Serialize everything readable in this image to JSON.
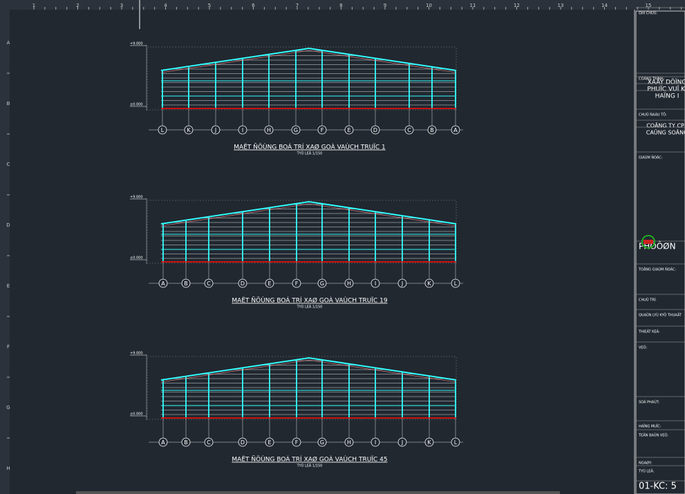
{
  "top_ruler": [
    "1",
    "2",
    "3",
    "4",
    "5",
    "6",
    "7",
    "8",
    "9",
    "10",
    "11",
    "12",
    "13",
    "14",
    "15"
  ],
  "left_ruler": [
    "A",
    "B",
    "C",
    "D",
    "E",
    "F",
    "G",
    "H"
  ],
  "drawings": [
    {
      "title": "MAËT ÑÖÙNG BOÁ TRÍ XAØ GOÀ VAÙCH TRUÏC 1",
      "scale": "TYÛ LEÄ 1/150",
      "level_top": "+9.000",
      "level_base": "±0.000",
      "axes": [
        "L",
        "K",
        "J",
        "I",
        "H",
        "G",
        "F",
        "E",
        "D",
        "C",
        "B",
        "A"
      ]
    },
    {
      "title": "MAËT ÑÖÙNG BOÁ TRÍ XAØ GOÀ VAÙCH TRUÏC 19",
      "scale": "TYÛ LEÄ 1/150",
      "level_top": "+9.000",
      "level_base": "±0.000",
      "axes": [
        "A",
        "B",
        "C",
        "D",
        "E",
        "F",
        "G",
        "H",
        "I",
        "J",
        "K",
        "L"
      ]
    },
    {
      "title": "MAËT ÑÖÙNG BOÁ TRÍ XAØ GOÀ VAÙCH TRUÏC 45",
      "scale": "TYÛ LEÄ 1/150",
      "level_top": "+9.000",
      "level_base": "±0.000",
      "axes": [
        "A",
        "B",
        "C",
        "D",
        "E",
        "F",
        "G",
        "H",
        "I",
        "J",
        "K",
        "L"
      ]
    }
  ],
  "title_block": [
    "GHI CHUÙ:",
    "COÂNG TRÌNH:",
    "XAÂY DÖÏNG",
    "PHUÏC VUÏ KI",
    "HAÏNG I",
    "CHUÛ ÑAÀU TÖ:",
    "COÂNG TY CP I",
    "CAÛNG SOÂNG",
    "GIAÙM ÑOÁC:",
    "PHÖÔØN",
    "TOÅNG GIAÙM ÑOÁC:",
    "CHUÛ TRÌ:",
    "QUAÛN LYÙ KYÕ THUAÄT",
    "THIEÁT KEÁ:",
    "VEÕ:",
    "SOÁ PHAÙT:",
    "HAÏNG MUÏC:",
    "TEÂN BAÛN VEÕ:",
    "NGAØY:",
    "TYÛ LEÄ:",
    "01-KC: 5"
  ]
}
